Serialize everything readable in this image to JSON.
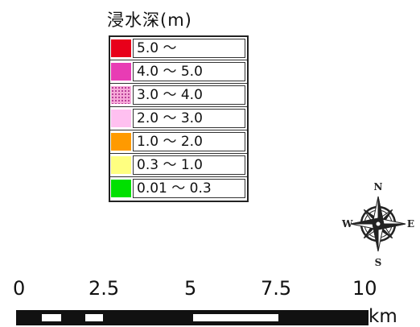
{
  "legend": {
    "title": "浸水深(m)",
    "items": [
      {
        "label": "5.0 ～",
        "color": "#e8001a",
        "pattern": "solid"
      },
      {
        "label": "4.0 ～ 5.0",
        "color": "#e83cb4",
        "pattern": "solid"
      },
      {
        "label": "3.0 ～ 4.0",
        "color": "#f6a8d8",
        "pattern": "dotted"
      },
      {
        "label": "2.0 ～ 3.0",
        "color": "#ffc0f0",
        "pattern": "solid"
      },
      {
        "label": "1.0 ～ 2.0",
        "color": "#ff9a00",
        "pattern": "solid"
      },
      {
        "label": "0.3 ～ 1.0",
        "color": "#ffff80",
        "pattern": "solid"
      },
      {
        "label": "0.01 ～ 0.3",
        "color": "#00e000",
        "pattern": "solid"
      }
    ]
  },
  "compass": {
    "icon": "compass-rose-icon",
    "north": "N",
    "south": "S",
    "east": "E",
    "west": "W"
  },
  "scale": {
    "ticks": [
      "0",
      "2.5",
      "5",
      "7.5",
      "10"
    ],
    "unit": "km"
  }
}
